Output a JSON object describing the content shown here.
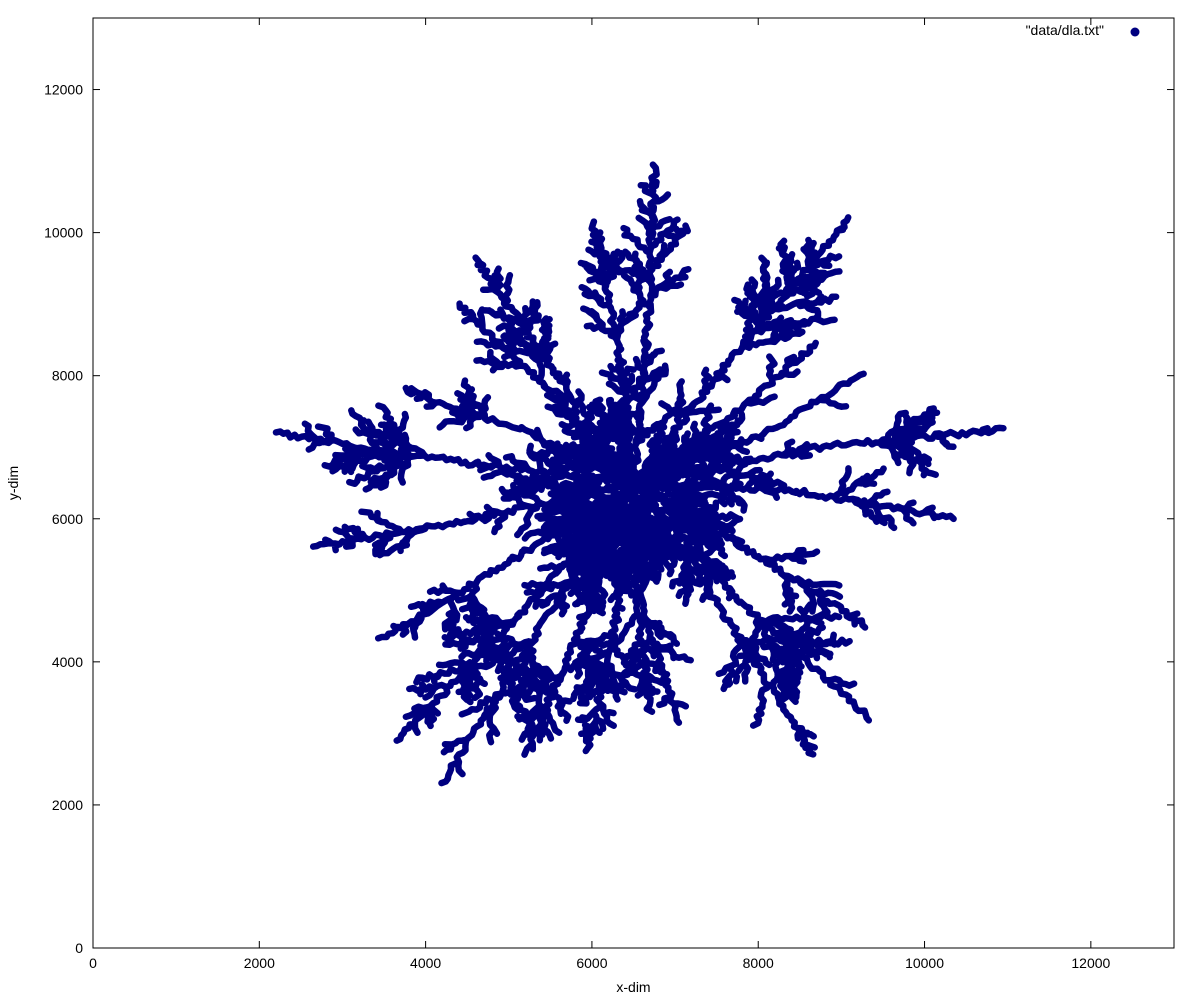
{
  "chart_data": {
    "type": "scatter",
    "xlabel": "x-dim",
    "ylabel": "y-dim",
    "xlim": [
      0,
      13000
    ],
    "ylim": [
      0,
      13000
    ],
    "x_ticks": [
      0,
      2000,
      4000,
      6000,
      8000,
      10000,
      12000
    ],
    "y_ticks": [
      0,
      2000,
      4000,
      6000,
      8000,
      10000,
      12000
    ],
    "grid": false,
    "legend_position": "top-right",
    "series": [
      {
        "name": "\"data/dla.txt\"",
        "color": "#000080",
        "center": [
          6500,
          6500
        ],
        "branch_tips": [
          [
            6750,
            10950
          ],
          [
            9100,
            10200
          ],
          [
            8700,
            8450
          ],
          [
            9250,
            8050
          ],
          [
            10950,
            7250
          ],
          [
            10350,
            6000
          ],
          [
            9300,
            4500
          ],
          [
            9350,
            3200
          ],
          [
            8650,
            2700
          ],
          [
            7050,
            3150
          ],
          [
            6700,
            3300
          ],
          [
            5950,
            2750
          ],
          [
            5200,
            2700
          ],
          [
            4200,
            2300
          ],
          [
            3650,
            2900
          ],
          [
            3450,
            4300
          ],
          [
            2650,
            5600
          ],
          [
            2200,
            7200
          ],
          [
            3750,
            7800
          ],
          [
            4400,
            9000
          ],
          [
            4600,
            9650
          ],
          [
            6000,
            10150
          ]
        ]
      }
    ]
  }
}
